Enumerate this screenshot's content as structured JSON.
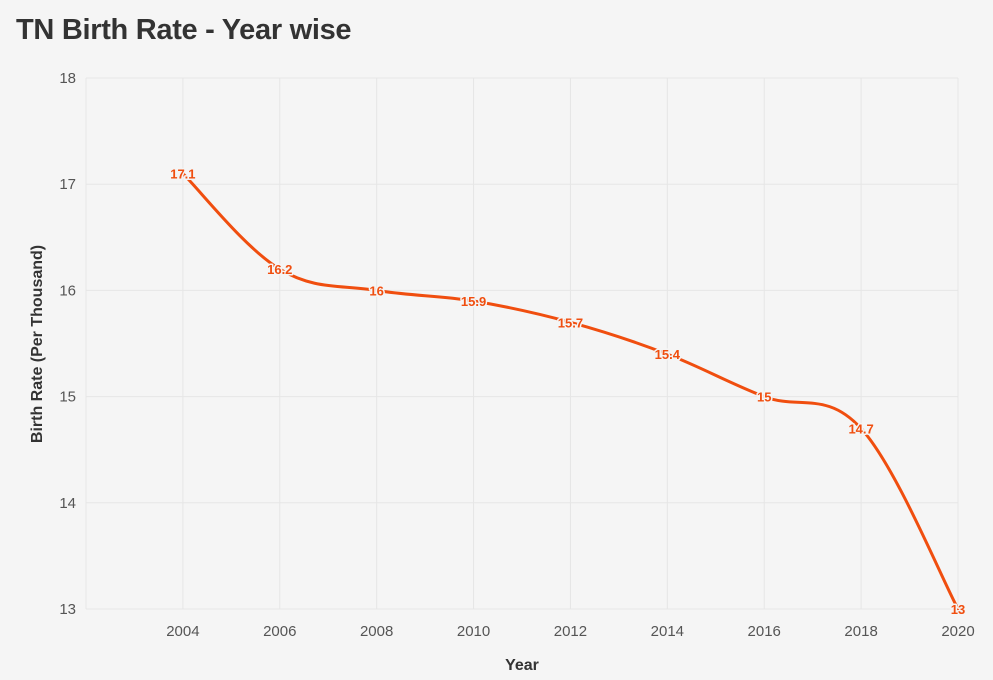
{
  "title": "TN Birth Rate - Year wise",
  "colors": {
    "line": "#f04e0f",
    "grid": "#e6e6e6",
    "background": "#f5f5f5"
  },
  "chart_data": {
    "type": "line",
    "title": "TN Birth Rate - Year wise",
    "xlabel": "Year",
    "ylabel": "Birth Rate (Per Thousand)",
    "x_ticks": [
      2004,
      2006,
      2008,
      2010,
      2012,
      2014,
      2016,
      2018,
      2020
    ],
    "y_ticks": [
      13,
      14,
      15,
      16,
      17,
      18
    ],
    "xlim": [
      2002,
      2020
    ],
    "ylim": [
      13,
      18
    ],
    "grid": true,
    "series": [
      {
        "name": "Birth Rate",
        "x": [
          2004,
          2006,
          2008,
          2010,
          2012,
          2014,
          2016,
          2018,
          2020
        ],
        "values": [
          17.1,
          16.2,
          16,
          15.9,
          15.7,
          15.4,
          15,
          14.7,
          13
        ],
        "labels": [
          "17.1",
          "16.2",
          "16",
          "15.9",
          "15.7",
          "15.4",
          "15",
          "14.7",
          "13"
        ]
      }
    ]
  }
}
